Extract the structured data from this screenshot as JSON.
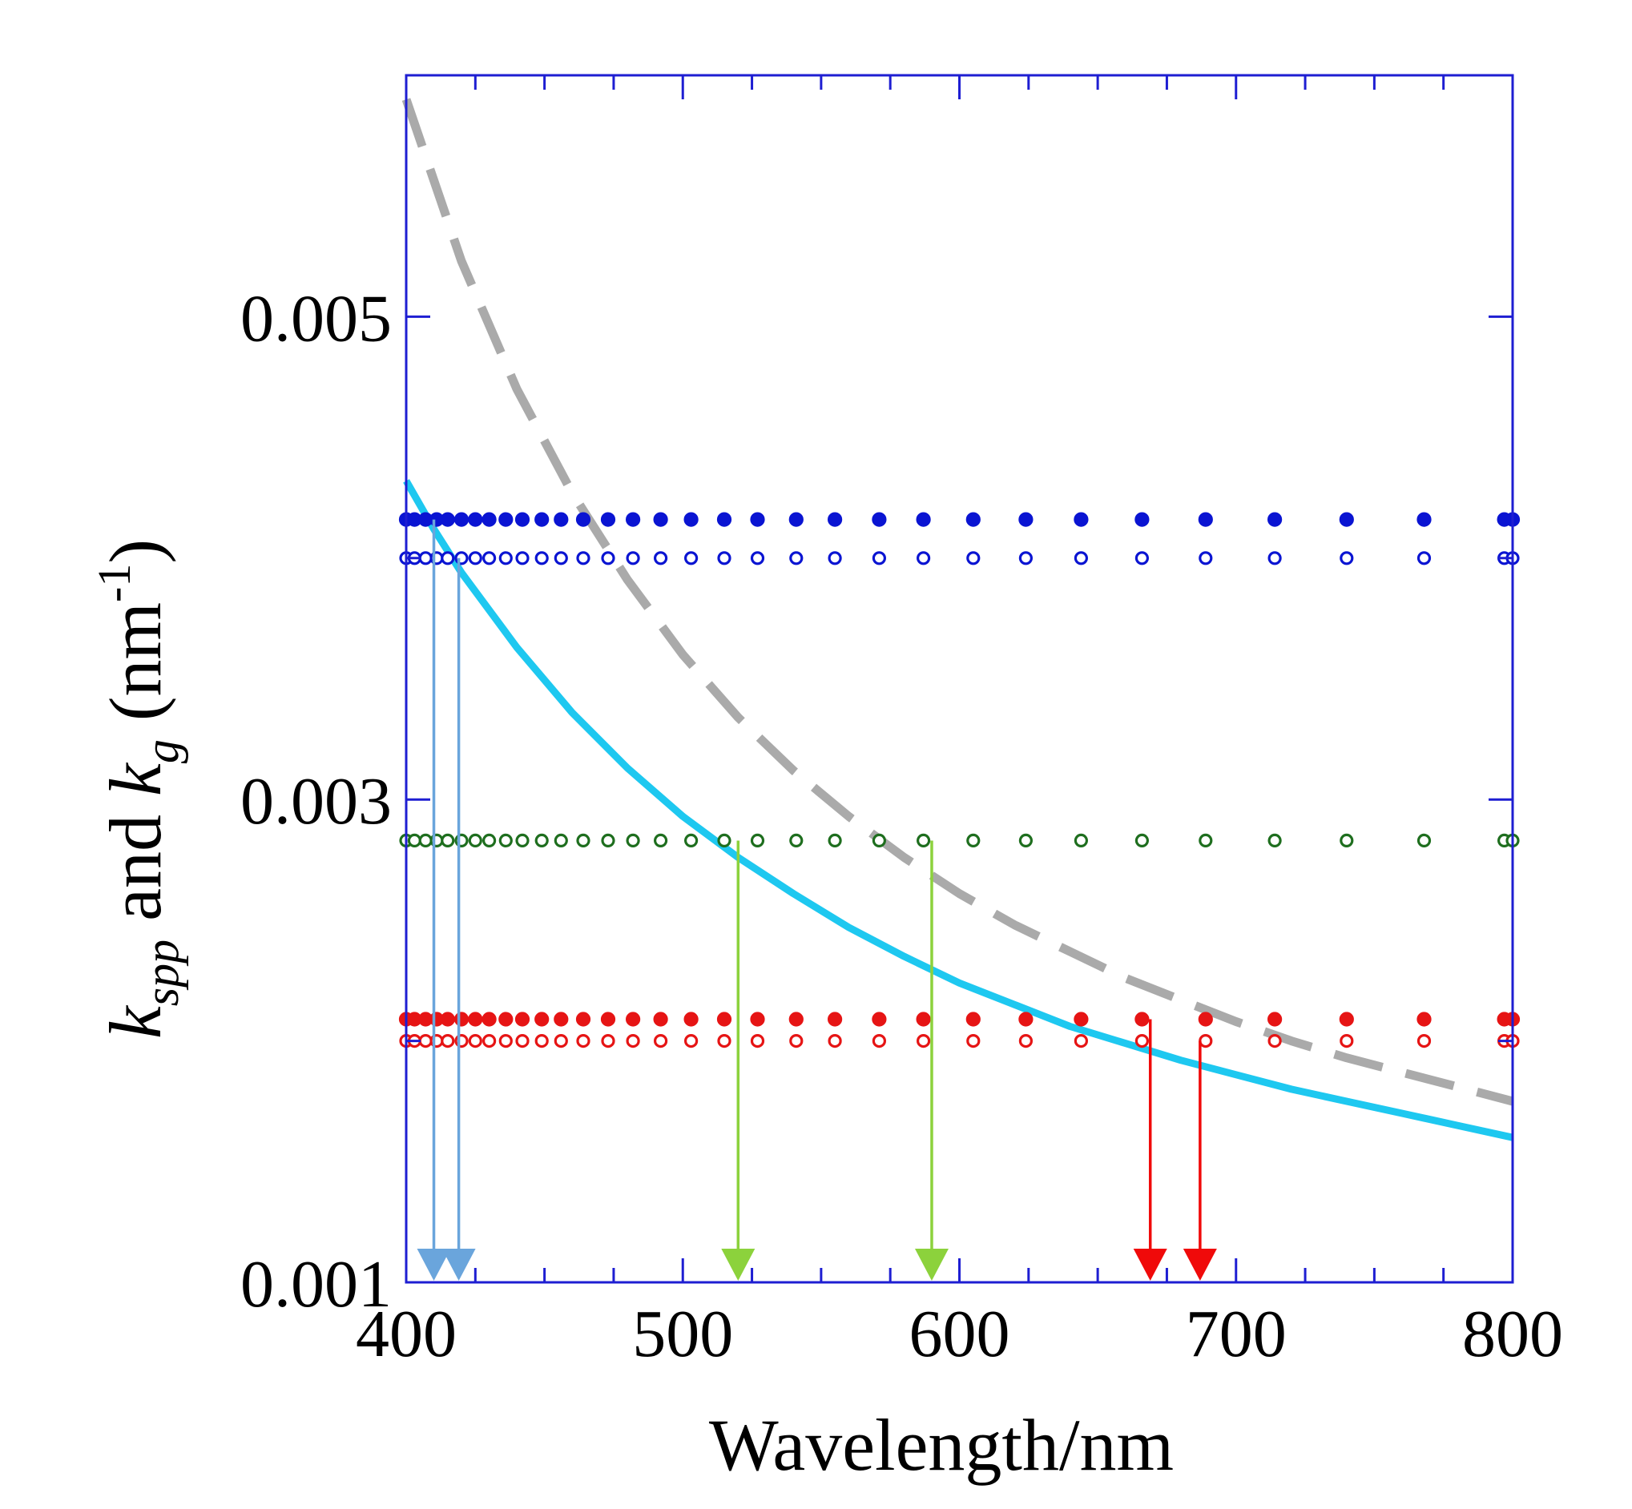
{
  "chart_data": {
    "type": "line",
    "title": "",
    "xlabel": "Wavelength/nm",
    "ylabel": {
      "k1": "k",
      "sub1": "spp",
      "mid": " and ",
      "k2": "k",
      "sub2": "g",
      "unit_pre": " (nm",
      "unit_sup": "-1",
      "unit_post": ")"
    },
    "xlim": [
      400,
      800
    ],
    "ylim": [
      0.001,
      0.006
    ],
    "x_major_ticks": [
      400,
      500,
      600,
      700,
      800
    ],
    "x_minor_ticks": [
      450,
      550,
      650,
      750
    ],
    "x_tick_labels": [
      "400",
      "500",
      "600",
      "700",
      "800"
    ],
    "y_major_ticks": [
      0.001,
      0.003,
      0.005
    ],
    "y_minor_ticks": [
      0.002,
      0.004
    ],
    "y_tick_labels": [
      "0.001",
      "0.003",
      "0.005"
    ],
    "grid": false,
    "series": [
      {
        "name": "k_spp (solid)",
        "style": "solid",
        "color": "#1EC8F0",
        "x": [
          400,
          410,
          420,
          440,
          460,
          480,
          500,
          520,
          540,
          560,
          580,
          600,
          620,
          640,
          660,
          680,
          700,
          720,
          740,
          760,
          780,
          800
        ],
        "y": [
          0.00432,
          0.00412,
          0.00394,
          0.00363,
          0.00336,
          0.00313,
          0.00293,
          0.00276,
          0.00261,
          0.00247,
          0.00235,
          0.00224,
          0.00215,
          0.00206,
          0.00199,
          0.00192,
          0.00186,
          0.0018,
          0.00175,
          0.0017,
          0.00165,
          0.0016
        ]
      },
      {
        "name": "k_g (dashed)",
        "style": "dashed",
        "color": "#AAAAAA",
        "x": [
          400,
          420,
          440,
          460,
          480,
          500,
          520,
          540,
          560,
          580,
          600,
          620,
          640,
          660,
          680,
          700,
          720,
          740,
          760,
          780,
          800
        ],
        "y": [
          0.0059,
          0.00523,
          0.0047,
          0.00427,
          0.00391,
          0.0036,
          0.00334,
          0.00312,
          0.00293,
          0.00276,
          0.00261,
          0.00248,
          0.00237,
          0.00226,
          0.00217,
          0.00208,
          0.002,
          0.00193,
          0.00187,
          0.00181,
          0.00175
        ]
      }
    ],
    "marker_rows": [
      {
        "name": "blue filled",
        "y": 0.00416,
        "color": "#0A14D2",
        "filled": true
      },
      {
        "name": "blue open",
        "y": 0.004,
        "color": "#0A14D2",
        "filled": false
      },
      {
        "name": "green open",
        "y": 0.00283,
        "color": "#1E6E1E",
        "filled": false
      },
      {
        "name": "red filled",
        "y": 0.00209,
        "color": "#E61414",
        "filled": true
      },
      {
        "name": "red open",
        "y": 0.002,
        "color": "#E61414",
        "filled": false
      }
    ],
    "marker_x": [
      400,
      403,
      407,
      411,
      415,
      420,
      425,
      430,
      436,
      442,
      449,
      456,
      464,
      473,
      482,
      492,
      503,
      515,
      527,
      541,
      555,
      571,
      587,
      605,
      624,
      644,
      666,
      689,
      714,
      740,
      768,
      797,
      800
    ],
    "arrows": [
      {
        "name": "blue-arrow-1",
        "x": 410,
        "y_start": 0.00416,
        "color": "#6AA5DC"
      },
      {
        "name": "blue-arrow-2",
        "x": 419,
        "y_start": 0.004,
        "color": "#6AA5DC"
      },
      {
        "name": "green-arrow-1",
        "x": 520,
        "y_start": 0.00283,
        "color": "#8CD23C"
      },
      {
        "name": "green-arrow-2",
        "x": 590,
        "y_start": 0.00283,
        "color": "#8CD23C"
      },
      {
        "name": "red-arrow-1",
        "x": 669,
        "y_start": 0.00209,
        "color": "#F00A0A"
      },
      {
        "name": "red-arrow-2",
        "x": 687,
        "y_start": 0.002,
        "color": "#F00A0A"
      }
    ],
    "axis_color": "#1E1ED2"
  }
}
